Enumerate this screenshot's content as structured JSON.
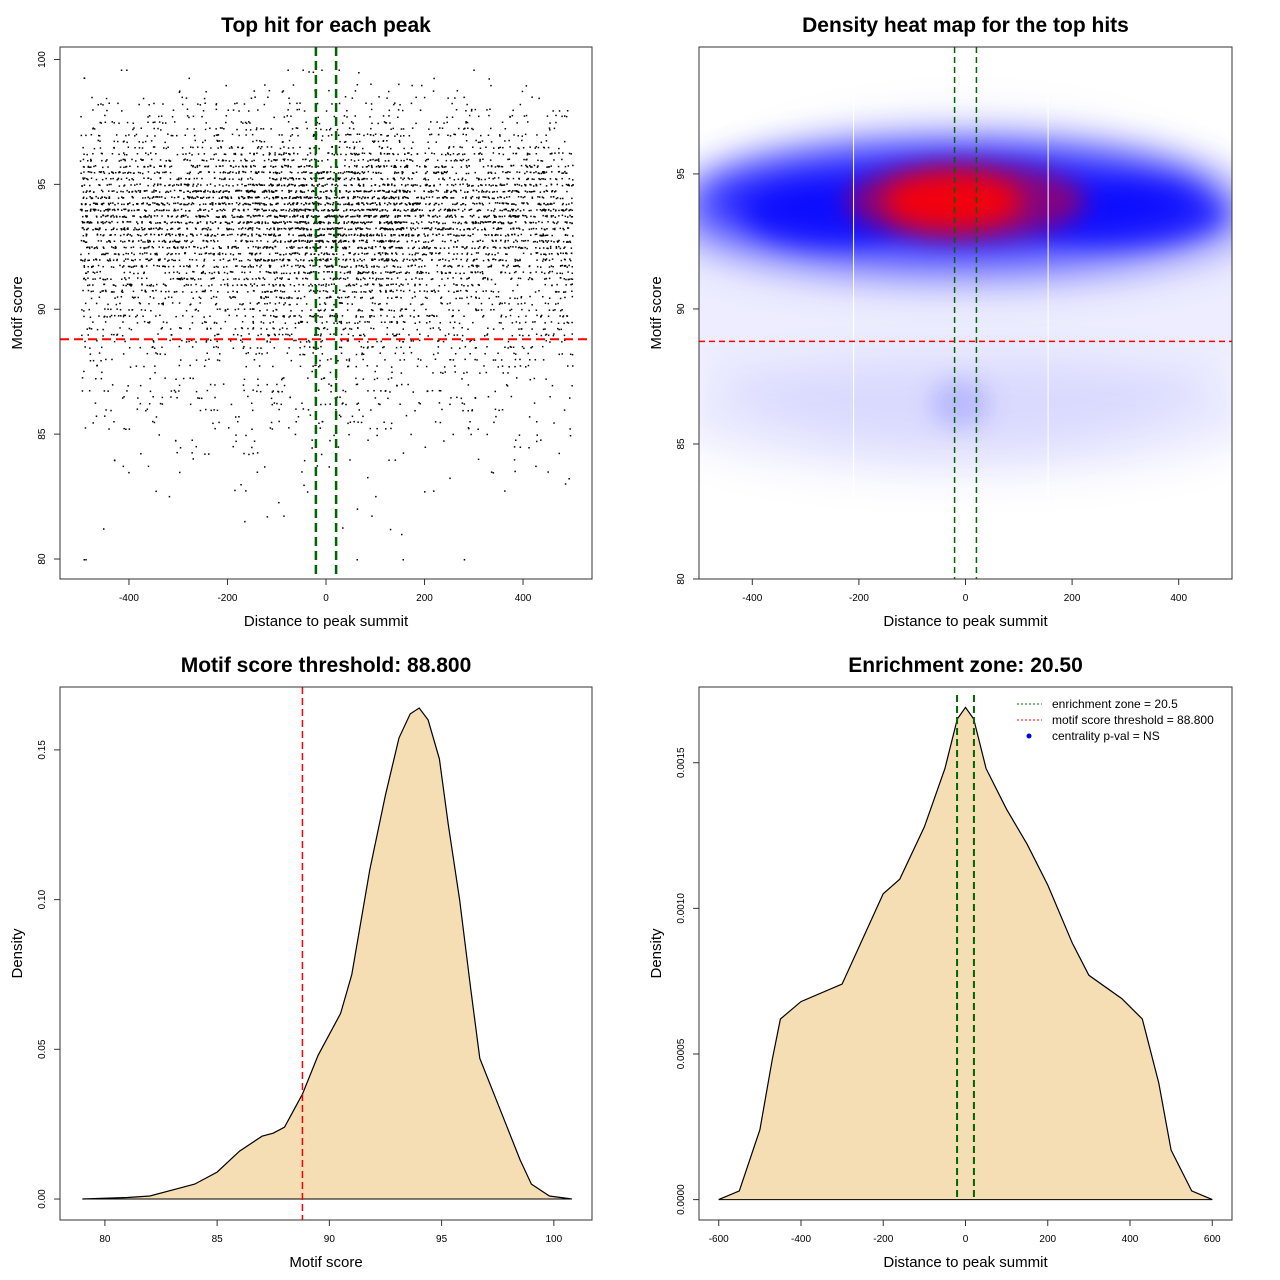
{
  "chart_data": [
    {
      "type": "scatter",
      "title": "Top hit for each peak",
      "xlabel": "Distance to peak summit",
      "ylabel": "Motif score",
      "xlim": [
        -540,
        540
      ],
      "ylim": [
        79.2,
        100.5
      ],
      "xticks": [
        "-400",
        "-200",
        "0",
        "200",
        "400"
      ],
      "yticks": [
        "80",
        "85",
        "90",
        "95",
        "100"
      ],
      "point_color": "#000000",
      "x_range_of_points": [
        -500,
        500
      ],
      "y_range_of_points": [
        80,
        99.6
      ],
      "enrichment_zone_lines": [
        -20.5,
        20.5
      ],
      "enrichment_line_color": "#006400",
      "threshold_line": 88.8,
      "threshold_line_color": "#ff0000",
      "grid": false
    },
    {
      "type": "heatmap",
      "title": "Density heat map for the top hits",
      "xlabel": "Distance to peak summit",
      "ylabel": "Motif score",
      "xlim": [
        -500,
        500
      ],
      "ylim": [
        80,
        99.7
      ],
      "xticks": [
        "-400",
        "-200",
        "0",
        "200",
        "400"
      ],
      "yticks": [
        "80",
        "85",
        "90",
        "95"
      ],
      "color_scale": [
        "#ffffff",
        "#0000ff",
        "#ff0000"
      ],
      "density_peak": {
        "x": -30,
        "y": 94
      },
      "enrichment_zone_lines": [
        -20.5,
        20.5
      ],
      "threshold_line": 88.8,
      "grid": false
    },
    {
      "type": "area",
      "title": "Motif score threshold: 88.800",
      "xlabel": "Motif score",
      "ylabel": "Density",
      "xlim": [
        78,
        101.7
      ],
      "ylim": [
        -0.007,
        0.171
      ],
      "xticks": [
        "80",
        "85",
        "90",
        "95",
        "100"
      ],
      "yticks": [
        "0.00",
        "0.05",
        "0.10",
        "0.15"
      ],
      "fill_color": "#f5deb3",
      "threshold_line": 88.8,
      "x": [
        79,
        81,
        82,
        83,
        84,
        85,
        86,
        87,
        87.5,
        88,
        88.8,
        89.5,
        90.5,
        91,
        91.8,
        92.5,
        93.1,
        93.6,
        94,
        94.4,
        94.9,
        95.3,
        95.8,
        96.3,
        96.7,
        97.6,
        98.5,
        99,
        99.8,
        100.8
      ],
      "y": [
        0,
        0.0005,
        0.001,
        0.003,
        0.005,
        0.009,
        0.016,
        0.021,
        0.022,
        0.024,
        0.035,
        0.048,
        0.062,
        0.075,
        0.11,
        0.135,
        0.154,
        0.162,
        0.164,
        0.16,
        0.147,
        0.125,
        0.1,
        0.07,
        0.047,
        0.03,
        0.013,
        0.005,
        0.001,
        0
      ]
    },
    {
      "type": "area",
      "title": "Enrichment zone: 20.50",
      "xlabel": "Distance to peak summit",
      "ylabel": "Density",
      "xlim": [
        -648,
        648
      ],
      "ylim": [
        -7e-05,
        0.00176
      ],
      "xticks": [
        "-600",
        "-400",
        "-200",
        "0",
        "200",
        "400",
        "600"
      ],
      "yticks": [
        "0.0000",
        "0.0005",
        "0.0010",
        "0.0015"
      ],
      "fill_color": "#f5deb3",
      "enrichment_zone_lines": [
        -20.5,
        20.5
      ],
      "x": [
        -600,
        -550,
        -500,
        -470,
        -450,
        -400,
        -300,
        -200,
        -160,
        -100,
        -50,
        -20,
        0,
        20,
        50,
        100,
        150,
        200,
        260,
        300,
        380,
        430,
        470,
        500,
        550,
        600
      ],
      "y": [
        0,
        3e-05,
        0.00024,
        0.00048,
        0.00062,
        0.00068,
        0.00074,
        0.00105,
        0.0011,
        0.00128,
        0.00148,
        0.00165,
        0.00169,
        0.00165,
        0.00148,
        0.00134,
        0.00122,
        0.00108,
        0.00088,
        0.00077,
        0.00069,
        0.00062,
        0.0004,
        0.00017,
        3e-05,
        0
      ],
      "legend": {
        "position": "top-right",
        "entries": [
          {
            "label": "enrichment zone = 20.5",
            "color": "#006400",
            "style": "dotted-line"
          },
          {
            "label": "motif score threshold = 88.800",
            "color": "#ff0000",
            "style": "dotted-line"
          },
          {
            "label": "centrality p-val = NS",
            "color": "#0000ff",
            "style": "point"
          }
        ]
      }
    }
  ]
}
